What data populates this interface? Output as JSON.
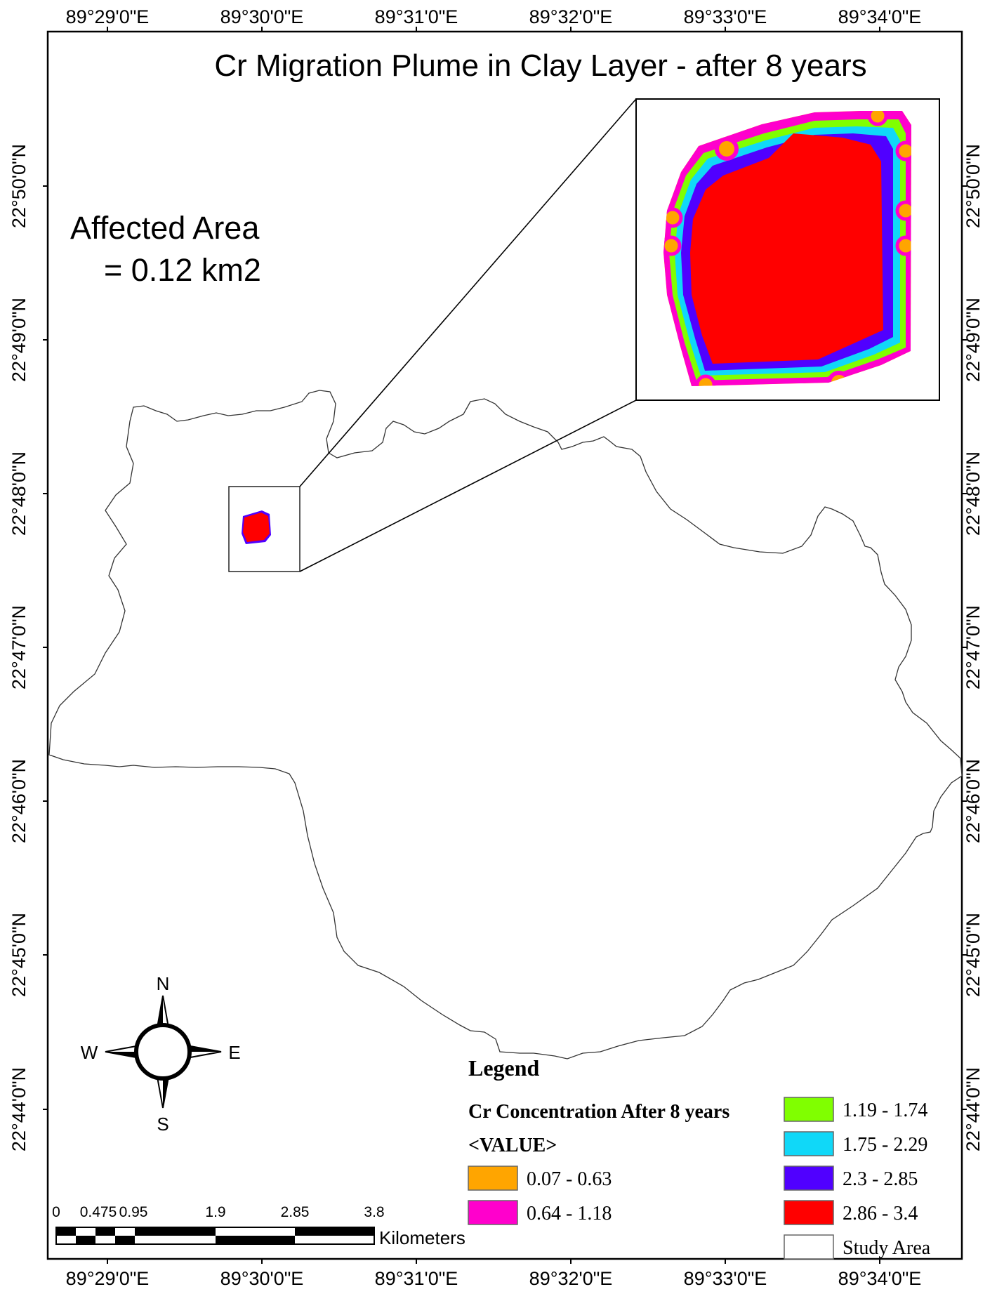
{
  "title": "Cr Migration Plume in Clay Layer - after 8 years",
  "affected_area": {
    "line1": "Affected Area",
    "line2": "= 0.12 km2"
  },
  "axes": {
    "lon_labels": [
      "89°29'0\"E",
      "89°30'0\"E",
      "89°31'0\"E",
      "89°32'0\"E",
      "89°33'0\"E",
      "89°34'0\"E"
    ],
    "lat_labels": [
      "22°50'0\"N",
      "22°49'0\"N",
      "22°48'0\"N",
      "22°47'0\"N",
      "22°46'0\"N",
      "22°45'0\"N",
      "22°44'0\"N"
    ]
  },
  "compass": {
    "n": "N",
    "s": "S",
    "e": "E",
    "w": "W"
  },
  "scale_bar": {
    "labels": [
      "0",
      "0.475",
      "0.95",
      "1.9",
      "2.85",
      "3.8"
    ],
    "unit": "Kilometers"
  },
  "legend": {
    "heading": "Legend",
    "layer_name": "Cr Concentration After 8 years",
    "field": "<VALUE>",
    "classes": [
      {
        "label": "0.07 - 0.63",
        "color": "#FFA500"
      },
      {
        "label": "0.64 - 1.18",
        "color": "#FF00CC"
      },
      {
        "label": "1.19 - 1.74",
        "color": "#80FF00"
      },
      {
        "label": "1.75 - 2.29",
        "color": "#10D8F8"
      },
      {
        "label": "2.3 - 2.85",
        "color": "#5000FF"
      },
      {
        "label": "2.86 - 3.4",
        "color": "#FF0000"
      }
    ],
    "study_area": {
      "label": "Study Area",
      "color": "#FFFFFF"
    }
  }
}
